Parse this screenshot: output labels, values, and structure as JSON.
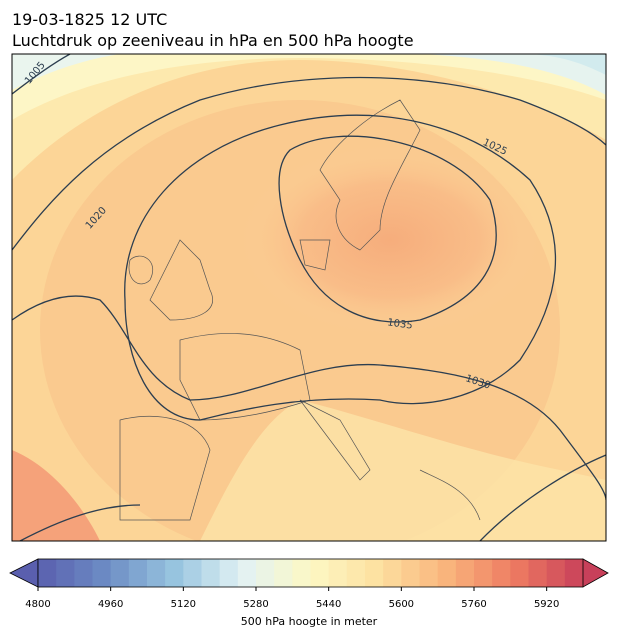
{
  "header": {
    "title": "19-03-1825 12 UTC",
    "subtitle": "Luchtdruk op zeeniveau in hPa en 500 hPa hoogte"
  },
  "contour_labels": [
    "1005",
    "1020",
    "1025",
    "1030",
    "1035"
  ],
  "colorbar": {
    "label": "500 hPa hoogte in meter",
    "range": [
      4800,
      6000
    ],
    "step": 40,
    "ticks": [
      4800,
      4960,
      5120,
      5280,
      5440,
      5600,
      5760,
      5920
    ],
    "colors": [
      "#5a5fae",
      "#6c8cc4",
      "#97c4df",
      "#e2f2f4",
      "#fdf8c4",
      "#fde0a0",
      "#f9b47c",
      "#ee7b62",
      "#c8405a"
    ]
  }
}
